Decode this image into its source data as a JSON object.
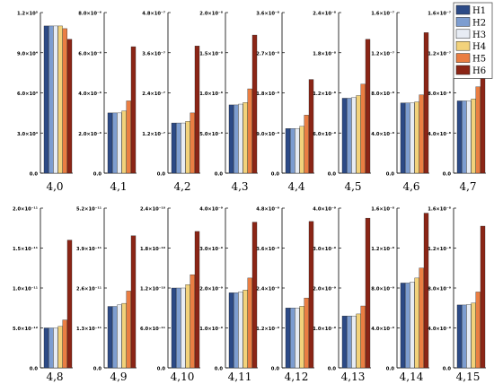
{
  "series_names": [
    "H1",
    "H2",
    "H3",
    "H4",
    "H5",
    "H6"
  ],
  "colors": {
    "H1": "#2c4a86",
    "H2": "#7d9dd0",
    "H3": "#e7ecf4",
    "H4": "#f2d27b",
    "H5": "#ea7e43",
    "H6": "#8b2516"
  },
  "chart_data": [
    {
      "type": "bar",
      "panel_label": "4,0",
      "ylim": [
        0,
        120000.0
      ],
      "yticks": [
        0,
        30000.0,
        60000.0,
        90000.0,
        120000.0
      ],
      "ytick_labels": [
        "0.0",
        "3.0×10⁴",
        "6.0×10⁴",
        "9.0×10⁴",
        "1.2×10⁵"
      ],
      "values": [
        110000.0,
        110000.0,
        110000.0,
        110000.0,
        108000.0,
        100000.0
      ]
    },
    {
      "type": "bar",
      "panel_label": "4,1",
      "ylim": [
        0,
        8e-06
      ],
      "yticks": [
        0,
        2e-06,
        4e-06,
        6e-06,
        8e-06
      ],
      "ytick_labels": [
        "0.0",
        "2.0×10⁻⁶",
        "4.0×10⁻⁶",
        "6.0×10⁻⁶",
        "8.0×10⁻⁶"
      ],
      "values": [
        3e-06,
        3e-06,
        3e-06,
        3.1e-06,
        3.6e-06,
        6.3e-06
      ]
    },
    {
      "type": "bar",
      "panel_label": "4,2",
      "ylim": [
        0,
        4.8e-07
      ],
      "yticks": [
        0,
        1.2e-07,
        2.4e-07,
        3.6e-07,
        4.8e-07
      ],
      "ytick_labels": [
        "0.0",
        "1.2×10⁻⁷",
        "2.4×10⁻⁷",
        "3.6×10⁻⁷",
        "4.8×10⁻⁷"
      ],
      "values": [
        1.5e-07,
        1.5e-07,
        1.5e-07,
        1.55e-07,
        1.8e-07,
        3.8e-07
      ]
    },
    {
      "type": "bar",
      "panel_label": "4,3",
      "ylim": [
        0,
        2e-08
      ],
      "yticks": [
        0,
        5e-09,
        1e-08,
        1.5e-08,
        2e-08
      ],
      "ytick_labels": [
        "0.0",
        "5.0×10⁻⁹",
        "1.0×10⁻⁸",
        "1.5×10⁻⁸",
        "2.0×10⁻⁸"
      ],
      "values": [
        8.5e-09,
        8.5e-09,
        8.6e-09,
        8.8e-09,
        1.05e-08,
        1.72e-08
      ]
    },
    {
      "type": "bar",
      "panel_label": "4,4",
      "ylim": [
        0,
        3.6e-08
      ],
      "yticks": [
        0,
        9e-09,
        1.8e-08,
        2.7e-08,
        3.6e-08
      ],
      "ytick_labels": [
        "0.0",
        "9.0×10⁻⁹",
        "1.8×10⁻⁸",
        "2.7×10⁻⁸",
        "3.6×10⁻⁸"
      ],
      "values": [
        1e-08,
        1e-08,
        1e-08,
        1.05e-08,
        1.3e-08,
        2.1e-08
      ]
    },
    {
      "type": "bar",
      "panel_label": "4,5",
      "ylim": [
        0,
        2.4e-08
      ],
      "yticks": [
        0,
        6e-09,
        1.2e-08,
        1.8e-08,
        2.4e-08
      ],
      "ytick_labels": [
        "0.0",
        "6.0×10⁻⁹",
        "1.2×10⁻⁸",
        "1.8×10⁻⁸",
        "2.4×10⁻⁸"
      ],
      "values": [
        1.12e-08,
        1.12e-08,
        1.13e-08,
        1.16e-08,
        1.33e-08,
        2e-08
      ]
    },
    {
      "type": "bar",
      "panel_label": "4,6",
      "ylim": [
        0,
        1.6e-07
      ],
      "yticks": [
        0,
        4e-08,
        8e-08,
        1.2e-07,
        1.6e-07
      ],
      "ytick_labels": [
        "0.0",
        "4.0×10⁻⁸",
        "8.0×10⁻⁸",
        "1.2×10⁻⁷",
        "1.6×10⁻⁷"
      ],
      "values": [
        7e-08,
        7e-08,
        7e-08,
        7.1e-08,
        7.8e-08,
        1.4e-07
      ]
    },
    {
      "type": "bar",
      "panel_label": "4,7",
      "ylim": [
        0,
        1.6e-07
      ],
      "yticks": [
        0,
        4e-08,
        8e-08,
        1.2e-07,
        1.6e-07
      ],
      "ytick_labels": [
        "0.0",
        "4.0×10⁻⁸",
        "8.0×10⁻⁸",
        "1.2×10⁻⁷",
        "1.6×10⁻⁷"
      ],
      "values": [
        7.2e-08,
        7.2e-08,
        7.2e-08,
        7.4e-08,
        8.6e-08,
        1.3e-07
      ]
    },
    {
      "type": "bar",
      "panel_label": "4,8",
      "ylim": [
        0,
        2e-11
      ],
      "yticks": [
        0,
        5e-12,
        1e-11,
        1.5e-11,
        2e-11
      ],
      "ytick_labels": [
        "0.0",
        "5.0×10⁻¹²",
        "1.0×10⁻¹¹",
        "1.5×10⁻¹¹",
        "2.0×10⁻¹¹"
      ],
      "values": [
        5e-12,
        5e-12,
        5e-12,
        5.2e-12,
        6e-12,
        1.6e-11
      ]
    },
    {
      "type": "bar",
      "panel_label": "4,9",
      "ylim": [
        0,
        5.2e-11
      ],
      "yticks": [
        0,
        1.3e-11,
        2.6e-11,
        3.9e-11,
        5.2e-11
      ],
      "ytick_labels": [
        "0.0",
        "1.3×10⁻¹¹",
        "2.6×10⁻¹¹",
        "3.9×10⁻¹¹",
        "5.2×10⁻¹¹"
      ],
      "values": [
        2e-11,
        2e-11,
        2.05e-11,
        2.1e-11,
        2.5e-11,
        4.3e-11
      ]
    },
    {
      "type": "bar",
      "panel_label": "4,10",
      "ylim": [
        0,
        2.4e-10
      ],
      "yticks": [
        0,
        6e-11,
        1.2e-10,
        1.8e-10,
        2.4e-10
      ],
      "ytick_labels": [
        "0.0",
        "6.0×10⁻¹¹",
        "1.2×10⁻¹⁰",
        "1.8×10⁻¹⁰",
        "2.4×10⁻¹⁰"
      ],
      "values": [
        1.2e-10,
        1.2e-10,
        1.2e-10,
        1.25e-10,
        1.4e-10,
        2.05e-10
      ]
    },
    {
      "type": "bar",
      "panel_label": "4,11",
      "ylim": [
        0,
        4e-09
      ],
      "yticks": [
        0,
        1e-09,
        2e-09,
        3e-09,
        4e-09
      ],
      "ytick_labels": [
        "0.0",
        "1.0×10⁻⁹",
        "2.0×10⁻⁹",
        "3.0×10⁻⁹",
        "4.0×10⁻⁹"
      ],
      "values": [
        1.88e-09,
        1.88e-09,
        1.9e-09,
        1.95e-09,
        2.25e-09,
        3.65e-09
      ]
    },
    {
      "type": "bar",
      "panel_label": "4,12",
      "ylim": [
        0,
        4.8e-09
      ],
      "yticks": [
        0,
        1.2e-09,
        2.4e-09,
        3.6e-09,
        4.8e-09
      ],
      "ytick_labels": [
        "0.0",
        "1.2×10⁻⁹",
        "2.4×10⁻⁹",
        "3.6×10⁻⁹",
        "4.8×10⁻⁹"
      ],
      "values": [
        1.8e-09,
        1.8e-09,
        1.8e-09,
        1.85e-09,
        2.1e-09,
        4.4e-09
      ]
    },
    {
      "type": "bar",
      "panel_label": "4,13",
      "ylim": [
        0,
        4e-09
      ],
      "yticks": [
        0,
        1e-09,
        2e-09,
        3e-09,
        4e-09
      ],
      "ytick_labels": [
        "0.0",
        "1.0×10⁻⁹",
        "2.0×10⁻⁹",
        "3.0×10⁻⁹",
        "4.0×10⁻⁹"
      ],
      "values": [
        1.3e-09,
        1.3e-09,
        1.3e-09,
        1.35e-09,
        1.55e-09,
        3.75e-09
      ]
    },
    {
      "type": "bar",
      "panel_label": "4,14",
      "ylim": [
        0,
        1.6e-08
      ],
      "yticks": [
        0,
        4e-09,
        8e-09,
        1.2e-08,
        1.6e-08
      ],
      "ytick_labels": [
        "0.0",
        "4.0×10⁻⁹",
        "8.0×10⁻⁹",
        "1.2×10⁻⁸",
        "1.6×10⁻⁸"
      ],
      "values": [
        8.5e-09,
        8.5e-09,
        8.6e-09,
        9e-09,
        1e-08,
        1.55e-08
      ]
    },
    {
      "type": "bar",
      "panel_label": "4,15",
      "ylim": [
        0,
        1.6e-08
      ],
      "yticks": [
        0,
        4e-09,
        8e-09,
        1.2e-08,
        1.6e-08
      ],
      "ytick_labels": [
        "0.0",
        "4.0×10⁻⁹",
        "8.0×10⁻⁹",
        "1.2×10⁻⁸",
        "1.6×10⁻⁸"
      ],
      "values": [
        6.3e-09,
        6.3e-09,
        6.35e-09,
        6.5e-09,
        7.6e-09,
        1.42e-08
      ]
    }
  ]
}
